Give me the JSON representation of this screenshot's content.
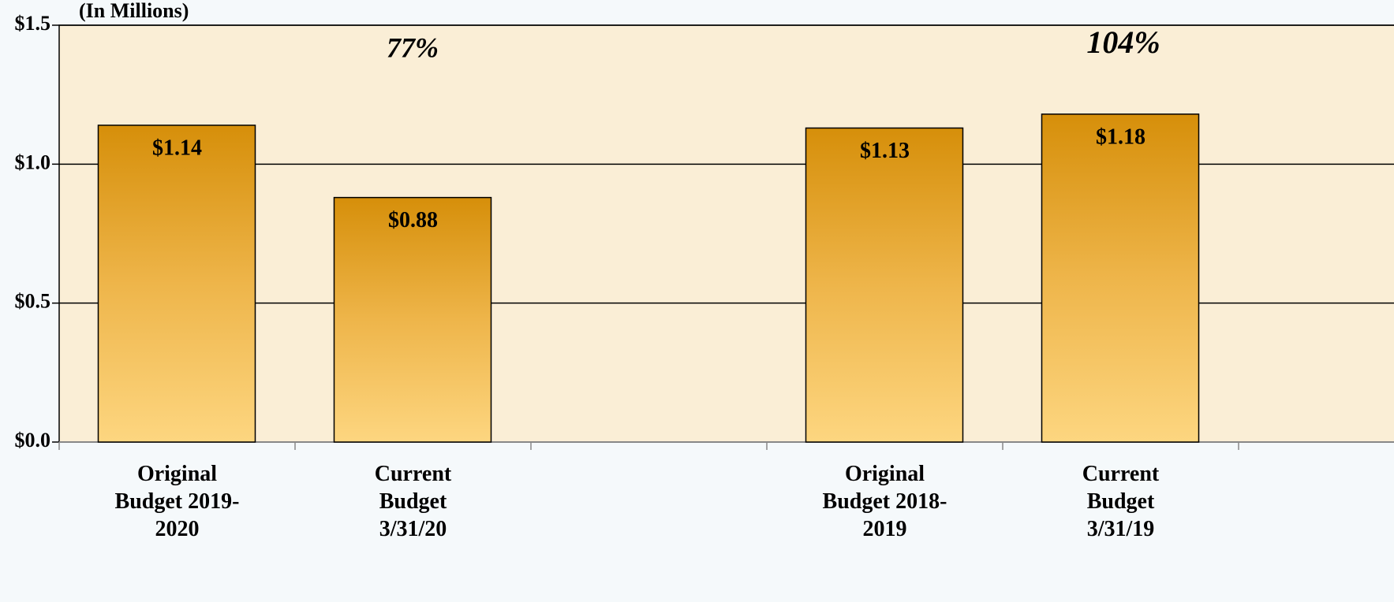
{
  "chart_data": {
    "type": "bar",
    "title": "(In Millions)",
    "categories": [
      "Original Budget 2019-2020",
      "Current Budget 3/31/20",
      null,
      "Original Budget 2018-2019",
      "Current Budget 3/31/19"
    ],
    "values": [
      1.14,
      0.88,
      null,
      1.13,
      1.18
    ],
    "value_labels": [
      "$1.14",
      "$0.88",
      null,
      "$1.13",
      "$1.18"
    ],
    "color": "#e3a021",
    "ylim": [
      0,
      1.5
    ],
    "yticks": [
      {
        "value": 0,
        "label": "$0.0"
      },
      {
        "value": 0.5,
        "label": "$0.5"
      },
      {
        "value": 1.0,
        "label": "$1.0"
      },
      {
        "value": 1.5,
        "label": "$1.5"
      }
    ],
    "grid": true,
    "annotations": [
      "77%",
      "104%"
    ]
  }
}
